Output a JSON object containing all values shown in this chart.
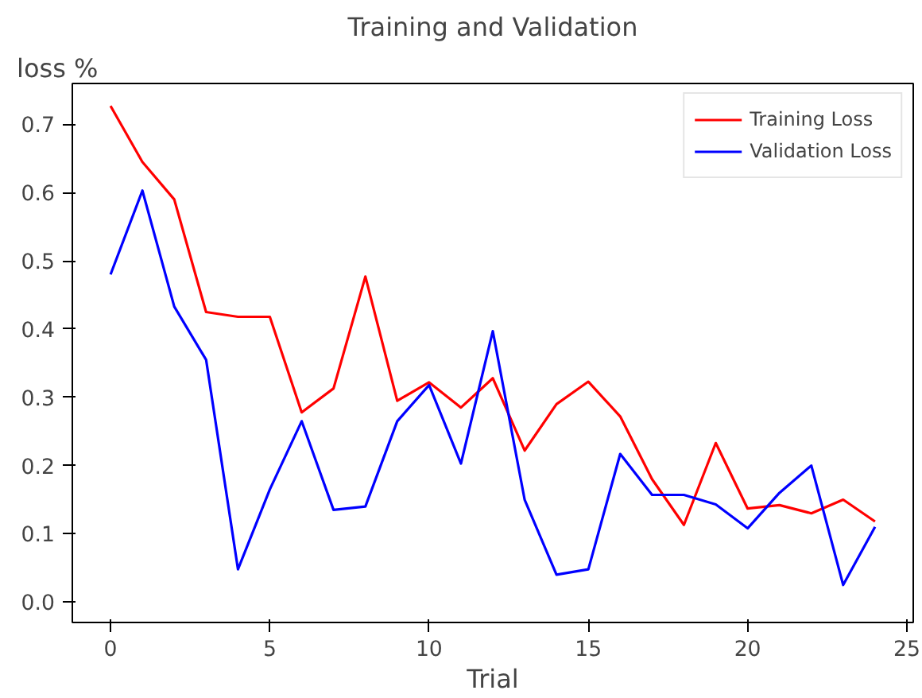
{
  "chart_data": {
    "type": "line",
    "title": "Training and Validation",
    "xlabel": "Trial",
    "ylabel": "loss %",
    "x": [
      0,
      1,
      2,
      3,
      4,
      5,
      6,
      7,
      8,
      9,
      10,
      11,
      12,
      13,
      14,
      15,
      16,
      17,
      18,
      19,
      20,
      21,
      22,
      23,
      24
    ],
    "series": [
      {
        "name": "Training Loss",
        "color": "#ff0000",
        "values": [
          0.727,
          0.645,
          0.59,
          0.425,
          0.418,
          0.418,
          0.278,
          0.313,
          0.477,
          0.295,
          0.322,
          0.285,
          0.328,
          0.222,
          0.29,
          0.323,
          0.272,
          0.18,
          0.113,
          0.233,
          0.137,
          0.142,
          0.13,
          0.15,
          0.118
        ]
      },
      {
        "name": "Validation Loss",
        "color": "#0000ff",
        "values": [
          0.48,
          0.603,
          0.433,
          0.355,
          0.048,
          0.165,
          0.265,
          0.135,
          0.14,
          0.265,
          0.318,
          0.203,
          0.397,
          0.15,
          0.04,
          0.048,
          0.217,
          0.157,
          0.157,
          0.143,
          0.108,
          0.16,
          0.2,
          0.025,
          0.11
        ]
      }
    ],
    "xlim": [
      -1.2,
      25.2
    ],
    "ylim": [
      -0.03,
      0.76
    ],
    "xticks": [
      0,
      5,
      10,
      15,
      20,
      25
    ],
    "yticks": [
      {
        "value": 0,
        "label": "0.0"
      },
      0.1,
      0.2,
      0.3,
      0.4,
      0.5,
      0.6,
      0.7
    ],
    "legend": "top right",
    "grid": false
  }
}
